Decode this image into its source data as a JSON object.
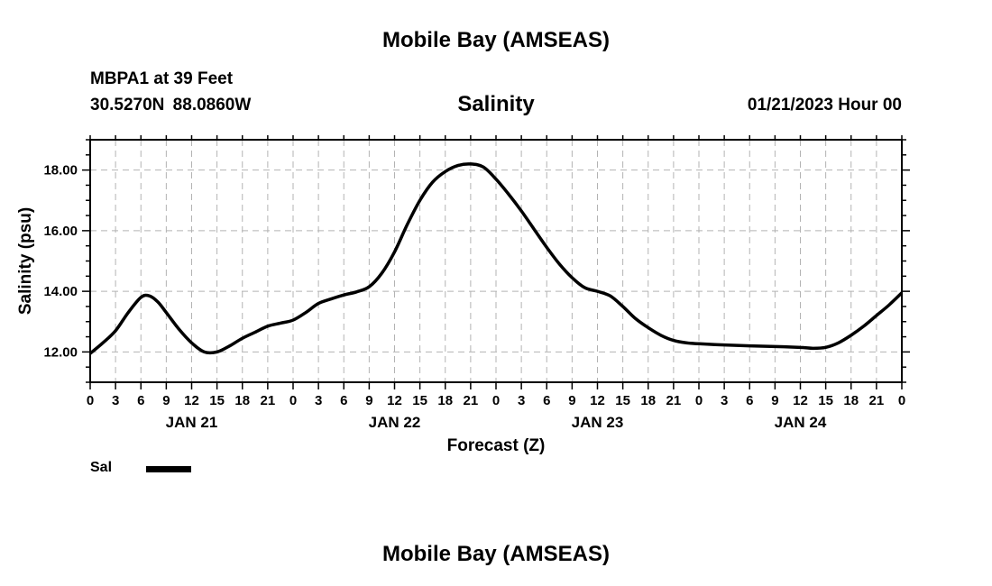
{
  "header": {
    "title": "Mobile Bay (AMSEAS)",
    "station": "MBPA1 at 39 Feet",
    "coords": "30.5270N  88.0860W",
    "subtitle": "Salinity",
    "datetime": "01/21/2023 Hour 00",
    "bottom_title": "Mobile Bay (AMSEAS)"
  },
  "legend": {
    "label": "Sal",
    "color": "#000000"
  },
  "chart_data": {
    "type": "line",
    "title": "Salinity",
    "xlabel": "Forecast (Z)",
    "ylabel": "Salinity (psu)",
    "x_unit": "hours",
    "xlim": [
      0,
      96
    ],
    "ylim": [
      11,
      19
    ],
    "yticks": [
      12,
      14,
      16,
      18
    ],
    "ytick_labels": [
      "12.00",
      "14.00",
      "16.00",
      "18.00"
    ],
    "xticks": [
      0,
      3,
      6,
      9,
      12,
      15,
      18,
      21,
      24,
      27,
      30,
      33,
      36,
      39,
      42,
      45,
      48,
      51,
      54,
      57,
      60,
      63,
      66,
      69,
      72,
      75,
      78,
      81,
      84,
      87,
      90,
      93,
      96
    ],
    "xtick_labels": [
      "0",
      "3",
      "6",
      "9",
      "12",
      "15",
      "18",
      "21",
      "0",
      "3",
      "6",
      "9",
      "12",
      "15",
      "18",
      "21",
      "0",
      "3",
      "6",
      "9",
      "12",
      "15",
      "18",
      "21",
      "0",
      "3",
      "6",
      "9",
      "12",
      "15",
      "18",
      "21",
      "0"
    ],
    "day_labels": [
      {
        "x": 12,
        "label": "JAN 21"
      },
      {
        "x": 36,
        "label": "JAN 22"
      },
      {
        "x": 60,
        "label": "JAN 23"
      },
      {
        "x": 84,
        "label": "JAN 24"
      }
    ],
    "grid": true,
    "series": [
      {
        "name": "Sal",
        "x": [
          0,
          1.5,
          3,
          4.5,
          6,
          7,
          8,
          9,
          10.5,
          12,
          13.5,
          15,
          16.5,
          18,
          19.5,
          21,
          22.5,
          24,
          25.5,
          27,
          28.5,
          30,
          31.5,
          33,
          34.5,
          36,
          37.5,
          39,
          40.5,
          42,
          43.5,
          45,
          46.5,
          48,
          49.5,
          51,
          52.5,
          54,
          55.5,
          57,
          58.5,
          60,
          61.5,
          63,
          64.5,
          66,
          67.5,
          69,
          70.5,
          72,
          75,
          78,
          81,
          84,
          85.5,
          87,
          88.5,
          90,
          91.5,
          93,
          94.5,
          96
        ],
        "y": [
          11.95,
          12.3,
          12.7,
          13.3,
          13.8,
          13.85,
          13.65,
          13.3,
          12.75,
          12.3,
          12.0,
          12.0,
          12.2,
          12.45,
          12.65,
          12.85,
          12.95,
          13.05,
          13.3,
          13.6,
          13.75,
          13.88,
          13.98,
          14.15,
          14.6,
          15.3,
          16.2,
          17.0,
          17.6,
          17.95,
          18.15,
          18.2,
          18.1,
          17.7,
          17.2,
          16.65,
          16.05,
          15.45,
          14.9,
          14.45,
          14.12,
          14.0,
          13.85,
          13.5,
          13.1,
          12.8,
          12.55,
          12.38,
          12.3,
          12.27,
          12.23,
          12.2,
          12.18,
          12.15,
          12.12,
          12.15,
          12.3,
          12.55,
          12.85,
          13.2,
          13.55,
          13.95
        ]
      }
    ]
  }
}
